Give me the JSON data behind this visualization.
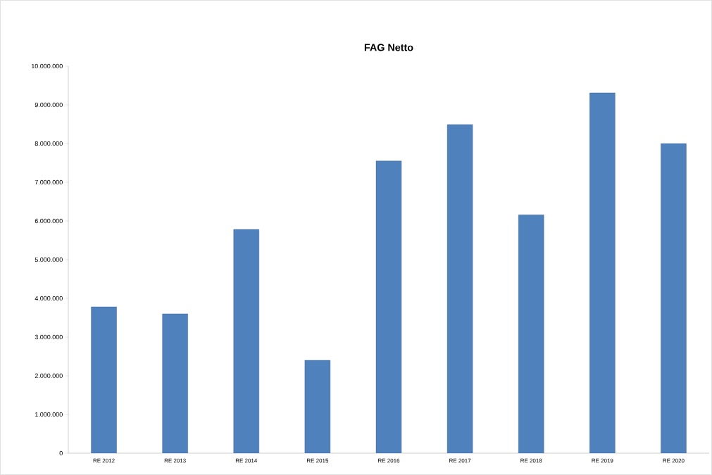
{
  "chart_data": {
    "type": "bar",
    "title": "FAG Netto",
    "categories": [
      "RE 2012",
      "RE 2013",
      "RE 2014",
      "RE 2015",
      "RE 2016",
      "RE 2017",
      "RE 2018",
      "RE 2019",
      "RE 2020"
    ],
    "values": [
      3780000,
      3600000,
      5780000,
      2400000,
      7550000,
      8490000,
      6160000,
      9310000,
      8000000
    ],
    "color": "#4f81bd",
    "ylim": [
      0,
      10000000
    ],
    "yticks": [
      {
        "value": 0,
        "label": "0"
      },
      {
        "value": 1000000,
        "label": "1.000.000"
      },
      {
        "value": 2000000,
        "label": "2.000.000"
      },
      {
        "value": 3000000,
        "label": "3.000.000"
      },
      {
        "value": 4000000,
        "label": "4.000.000"
      },
      {
        "value": 5000000,
        "label": "5.000.000"
      },
      {
        "value": 6000000,
        "label": "6.000.000"
      },
      {
        "value": 7000000,
        "label": "7.000.000"
      },
      {
        "value": 8000000,
        "label": "8.000.000"
      },
      {
        "value": 9000000,
        "label": "9.000.000"
      },
      {
        "value": 10000000,
        "label": "10.000.000"
      }
    ],
    "grid": false
  }
}
